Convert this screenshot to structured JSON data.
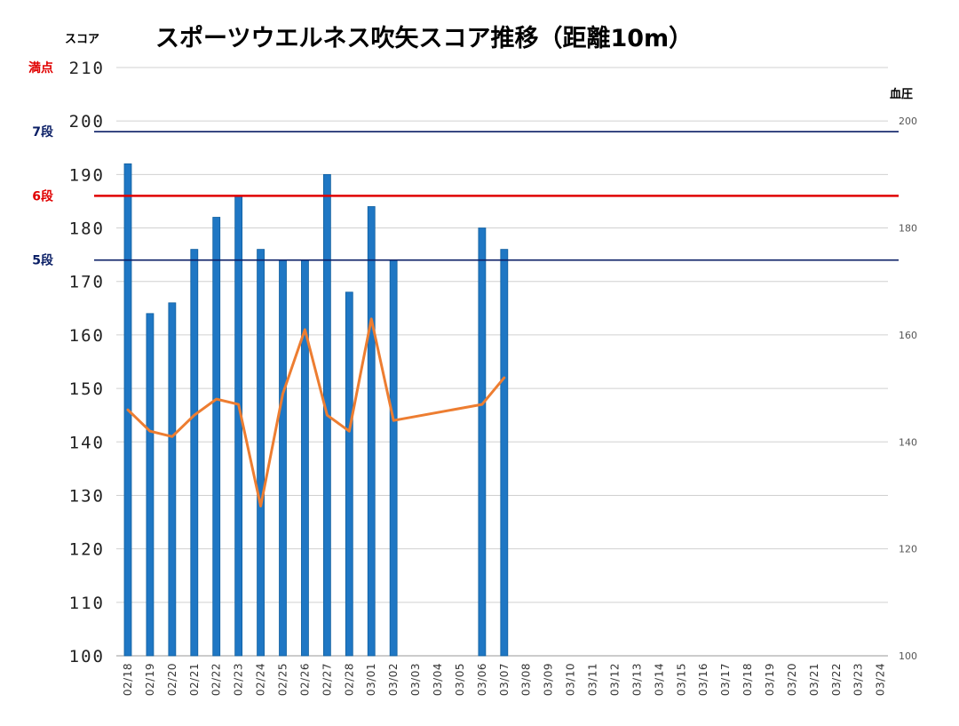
{
  "chart_data": {
    "type": "bar",
    "title": "スポーツウエルネス吹矢スコア推移（距離10m）",
    "ylabel": "スコア",
    "y2label": "血圧",
    "ylim": [
      100,
      210
    ],
    "y2lim": [
      100,
      210
    ],
    "yticks": [
      "100",
      "110",
      "120",
      "130",
      "140",
      "150",
      "160",
      "170",
      "180",
      "190",
      "200",
      "210"
    ],
    "y2ticks": [
      "100",
      "120",
      "140",
      "160",
      "180",
      "200"
    ],
    "grid": true,
    "categories": [
      "02/18",
      "02/19",
      "02/20",
      "02/21",
      "02/22",
      "02/23",
      "02/24",
      "02/25",
      "02/26",
      "02/27",
      "02/28",
      "03/01",
      "03/02",
      "03/03",
      "03/04",
      "03/05",
      "03/06",
      "03/07",
      "03/08",
      "03/09",
      "03/10",
      "03/11",
      "03/12",
      "03/13",
      "03/14",
      "03/15",
      "03/16",
      "03/17",
      "03/18",
      "03/19",
      "03/20",
      "03/21",
      "03/22",
      "03/23",
      "03/24"
    ],
    "series": [
      {
        "kind": "bar",
        "axis": "left",
        "color": "#1f77c4",
        "values": [
          192,
          164,
          166,
          176,
          182,
          186,
          176,
          174,
          174,
          190,
          168,
          184,
          174,
          null,
          null,
          null,
          180,
          176,
          null,
          null,
          null,
          null,
          null,
          null,
          null,
          null,
          null,
          null,
          null,
          null,
          null,
          null,
          null,
          null,
          null
        ]
      },
      {
        "kind": "line",
        "axis": "right",
        "color": "#ed7d31",
        "values": [
          146,
          142,
          141,
          145,
          148,
          147,
          128,
          149,
          161,
          145,
          142,
          163,
          144,
          null,
          null,
          null,
          147,
          152,
          null,
          null,
          null,
          null,
          null,
          null,
          null,
          null,
          null,
          null,
          null,
          null,
          null,
          null,
          null,
          null,
          null
        ]
      }
    ],
    "reference_lines": [
      {
        "label": "満点",
        "value": 210,
        "color": "#e00000"
      },
      {
        "label": "7段",
        "value": 198,
        "color": "#0b1f66"
      },
      {
        "label": "6段",
        "value": 186,
        "color": "#e00000"
      },
      {
        "label": "5段",
        "value": 174,
        "color": "#0b1f66"
      }
    ]
  }
}
